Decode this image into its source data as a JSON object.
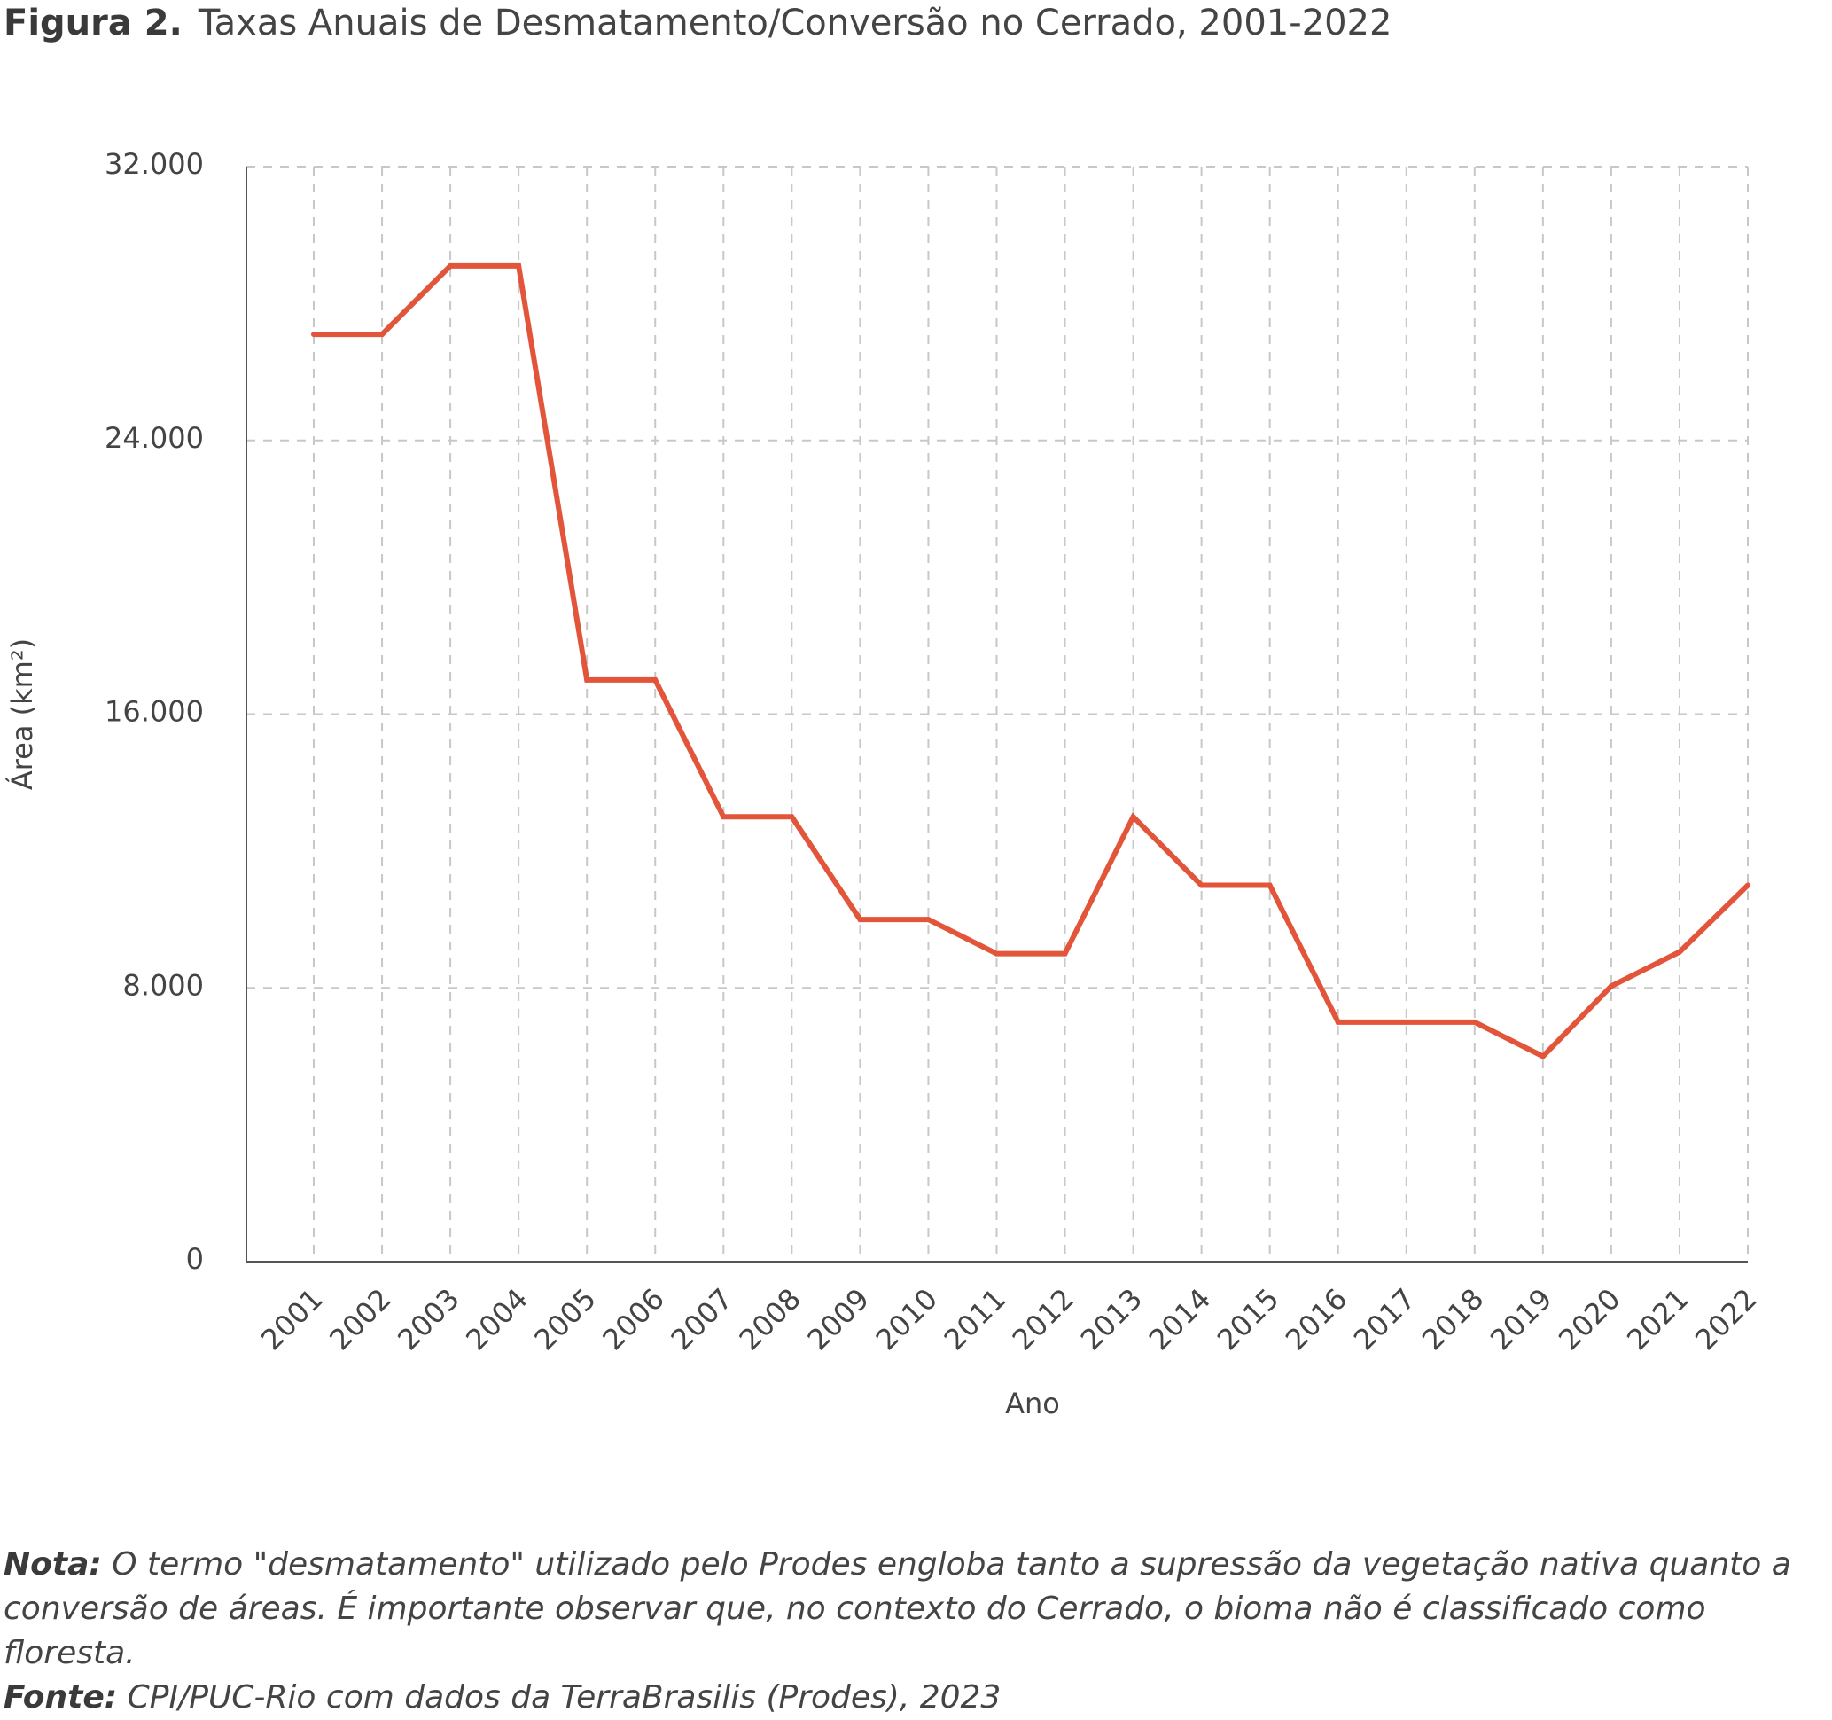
{
  "figure": {
    "label": "Figura 2.",
    "title": "Taxas Anuais de Desmatamento/Conversão no Cerrado, 2001-2022"
  },
  "notes": {
    "nota_label": "Nota:",
    "nota_text": "O termo \"desmatamento\" utilizado pelo Prodes engloba tanto a supressão da vegetação nativa quanto a conversão de áreas. É importante observar que, no contexto do Cerrado, o bioma não é classificado como floresta.",
    "fonte_label": "Fonte:",
    "fonte_text": "CPI/PUC-Rio com dados da TerraBrasilis (Prodes), 2023"
  },
  "colors": {
    "line": "#e2553a",
    "grid": "#c8c8c8",
    "axis": "#555555"
  },
  "chart_data": {
    "type": "line",
    "title": "",
    "xlabel": "Ano",
    "ylabel": "Área (km²)",
    "ylim": [
      0,
      32000
    ],
    "yticks": [
      0,
      8000,
      16000,
      24000,
      32000
    ],
    "ytick_labels": [
      "0",
      "8.000",
      "16.000",
      "24.000",
      "32.000"
    ],
    "grid": true,
    "categories": [
      "2001",
      "2002",
      "2003",
      "2004",
      "2005",
      "2006",
      "2007",
      "2008",
      "2009",
      "2010",
      "2011",
      "2012",
      "2013",
      "2014",
      "2015",
      "2016",
      "2017",
      "2018",
      "2019",
      "2020",
      "2021",
      "2022"
    ],
    "series": [
      {
        "values": [
          27100,
          27100,
          29100,
          29100,
          17000,
          17000,
          13000,
          13000,
          10000,
          10000,
          9000,
          9000,
          13000,
          11000,
          11000,
          7000,
          7000,
          7000,
          6000,
          8050,
          9050,
          11000
        ]
      }
    ]
  }
}
